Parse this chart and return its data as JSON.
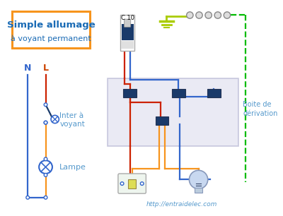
{
  "title": "Simple allumage",
  "subtitle": "à voyant permanent",
  "title_color": "#1a6bb5",
  "title_box_color": "#f7941d",
  "blue": "#3366cc",
  "dark_blue": "#1a3a6a",
  "red": "#cc2200",
  "orange": "#f7941d",
  "green": "#00bb00",
  "light_blue_text": "#5599cc",
  "website": "http://entraidelec.com",
  "N_label": "N",
  "L_label": "L",
  "inter_label": "Inter à",
  "inter_label2": "voyant",
  "lampe_label": "Lampe",
  "boite_label": "Boite de",
  "boite_label2": "dérivation",
  "C10_label": "C 10"
}
